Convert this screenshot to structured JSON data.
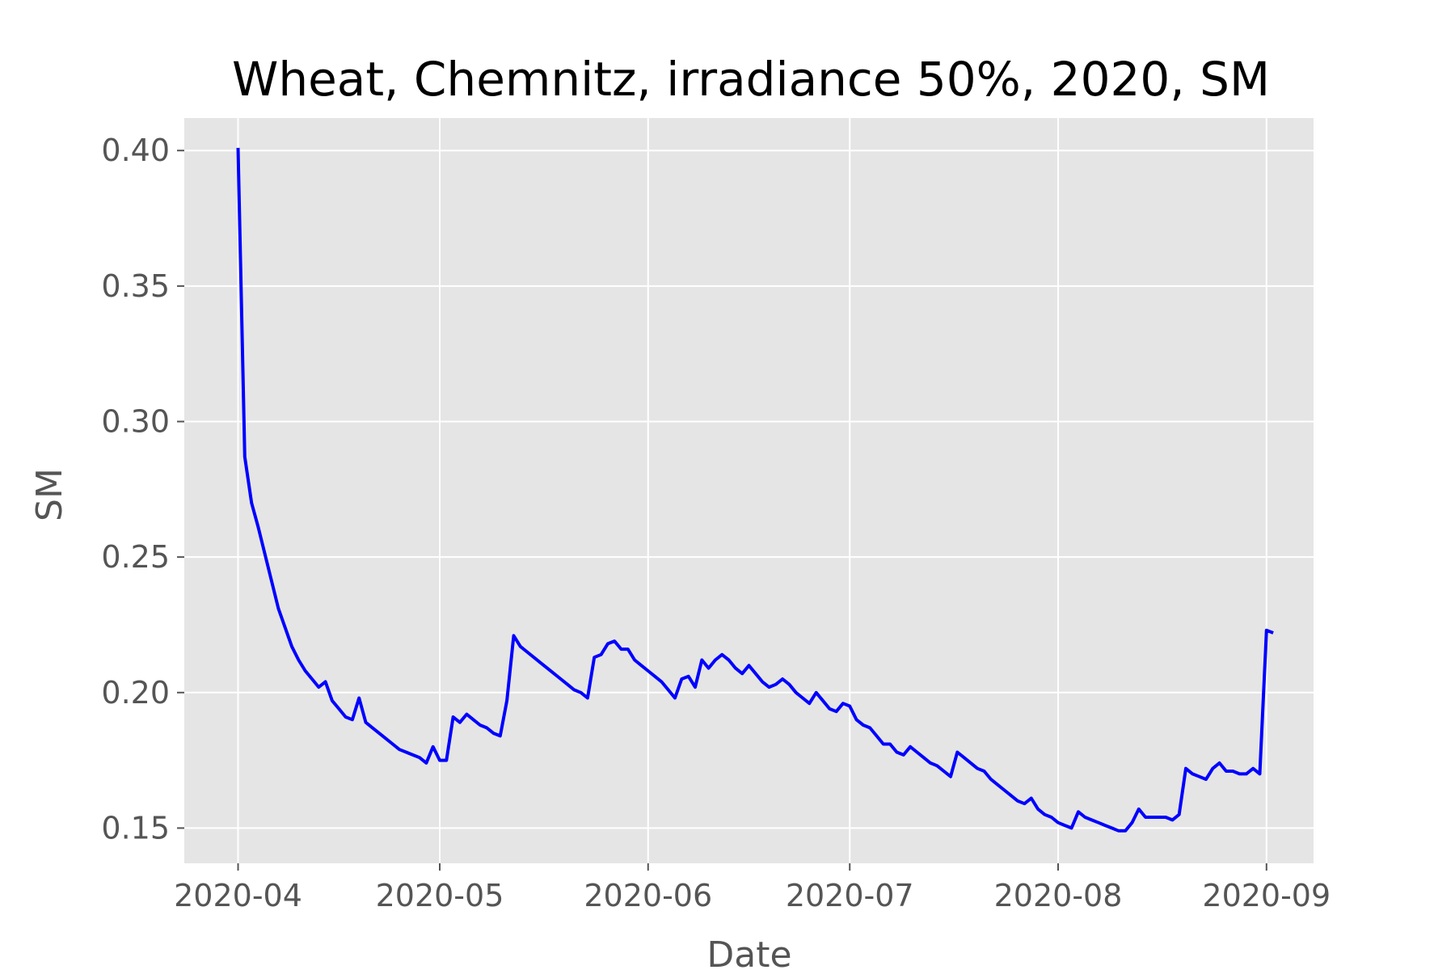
{
  "chart_data": {
    "type": "line",
    "title": "Wheat, Chemnitz, irradiance 50%, 2020, SM",
    "xlabel": "Date",
    "ylabel": "SM",
    "x_ticks": [
      "2020-04-01",
      "2020-05-01",
      "2020-06-01",
      "2020-07-01",
      "2020-08-01",
      "2020-09-01"
    ],
    "x_tick_labels": [
      "2020-04",
      "2020-05",
      "2020-06",
      "2020-07",
      "2020-08",
      "2020-09"
    ],
    "y_ticks": [
      0.15,
      0.2,
      0.25,
      0.3,
      0.35,
      0.4
    ],
    "y_tick_labels": [
      "0.15",
      "0.20",
      "0.25",
      "0.30",
      "0.35",
      "0.40"
    ],
    "xlim": [
      "2020-03-24",
      "2020-09-08"
    ],
    "ylim": [
      0.137,
      0.412
    ],
    "grid": true,
    "series": [
      {
        "color": "#0000ff",
        "points": [
          [
            "2020-04-01",
            0.401
          ],
          [
            "2020-04-02",
            0.287
          ],
          [
            "2020-04-03",
            0.27
          ],
          [
            "2020-04-04",
            0.261
          ],
          [
            "2020-04-05",
            0.251
          ],
          [
            "2020-04-06",
            0.241
          ],
          [
            "2020-04-07",
            0.231
          ],
          [
            "2020-04-08",
            0.224
          ],
          [
            "2020-04-09",
            0.217
          ],
          [
            "2020-04-10",
            0.212
          ],
          [
            "2020-04-11",
            0.208
          ],
          [
            "2020-04-12",
            0.205
          ],
          [
            "2020-04-13",
            0.202
          ],
          [
            "2020-04-14",
            0.204
          ],
          [
            "2020-04-15",
            0.197
          ],
          [
            "2020-04-16",
            0.194
          ],
          [
            "2020-04-17",
            0.191
          ],
          [
            "2020-04-18",
            0.19
          ],
          [
            "2020-04-19",
            0.198
          ],
          [
            "2020-04-20",
            0.189
          ],
          [
            "2020-04-21",
            0.187
          ],
          [
            "2020-04-22",
            0.185
          ],
          [
            "2020-04-23",
            0.183
          ],
          [
            "2020-04-24",
            0.181
          ],
          [
            "2020-04-25",
            0.179
          ],
          [
            "2020-04-26",
            0.178
          ],
          [
            "2020-04-27",
            0.177
          ],
          [
            "2020-04-28",
            0.176
          ],
          [
            "2020-04-29",
            0.174
          ],
          [
            "2020-04-30",
            0.18
          ],
          [
            "2020-05-01",
            0.175
          ],
          [
            "2020-05-02",
            0.175
          ],
          [
            "2020-05-03",
            0.191
          ],
          [
            "2020-05-04",
            0.189
          ],
          [
            "2020-05-05",
            0.192
          ],
          [
            "2020-05-06",
            0.19
          ],
          [
            "2020-05-07",
            0.188
          ],
          [
            "2020-05-08",
            0.187
          ],
          [
            "2020-05-09",
            0.185
          ],
          [
            "2020-05-10",
            0.184
          ],
          [
            "2020-05-11",
            0.197
          ],
          [
            "2020-05-12",
            0.221
          ],
          [
            "2020-05-13",
            0.217
          ],
          [
            "2020-05-14",
            0.215
          ],
          [
            "2020-05-15",
            0.213
          ],
          [
            "2020-05-16",
            0.211
          ],
          [
            "2020-05-17",
            0.209
          ],
          [
            "2020-05-18",
            0.207
          ],
          [
            "2020-05-19",
            0.205
          ],
          [
            "2020-05-20",
            0.203
          ],
          [
            "2020-05-21",
            0.201
          ],
          [
            "2020-05-22",
            0.2
          ],
          [
            "2020-05-23",
            0.198
          ],
          [
            "2020-05-24",
            0.213
          ],
          [
            "2020-05-25",
            0.214
          ],
          [
            "2020-05-26",
            0.218
          ],
          [
            "2020-05-27",
            0.219
          ],
          [
            "2020-05-28",
            0.216
          ],
          [
            "2020-05-29",
            0.216
          ],
          [
            "2020-05-30",
            0.212
          ],
          [
            "2020-05-31",
            0.21
          ],
          [
            "2020-06-01",
            0.208
          ],
          [
            "2020-06-02",
            0.206
          ],
          [
            "2020-06-03",
            0.204
          ],
          [
            "2020-06-04",
            0.201
          ],
          [
            "2020-06-05",
            0.198
          ],
          [
            "2020-06-06",
            0.205
          ],
          [
            "2020-06-07",
            0.206
          ],
          [
            "2020-06-08",
            0.202
          ],
          [
            "2020-06-09",
            0.212
          ],
          [
            "2020-06-10",
            0.209
          ],
          [
            "2020-06-11",
            0.212
          ],
          [
            "2020-06-12",
            0.214
          ],
          [
            "2020-06-13",
            0.212
          ],
          [
            "2020-06-14",
            0.209
          ],
          [
            "2020-06-15",
            0.207
          ],
          [
            "2020-06-16",
            0.21
          ],
          [
            "2020-06-17",
            0.207
          ],
          [
            "2020-06-18",
            0.204
          ],
          [
            "2020-06-19",
            0.202
          ],
          [
            "2020-06-20",
            0.203
          ],
          [
            "2020-06-21",
            0.205
          ],
          [
            "2020-06-22",
            0.203
          ],
          [
            "2020-06-23",
            0.2
          ],
          [
            "2020-06-24",
            0.198
          ],
          [
            "2020-06-25",
            0.196
          ],
          [
            "2020-06-26",
            0.2
          ],
          [
            "2020-06-27",
            0.197
          ],
          [
            "2020-06-28",
            0.194
          ],
          [
            "2020-06-29",
            0.193
          ],
          [
            "2020-06-30",
            0.196
          ],
          [
            "2020-07-01",
            0.195
          ],
          [
            "2020-07-02",
            0.19
          ],
          [
            "2020-07-03",
            0.188
          ],
          [
            "2020-07-04",
            0.187
          ],
          [
            "2020-07-05",
            0.184
          ],
          [
            "2020-07-06",
            0.181
          ],
          [
            "2020-07-07",
            0.181
          ],
          [
            "2020-07-08",
            0.178
          ],
          [
            "2020-07-09",
            0.177
          ],
          [
            "2020-07-10",
            0.18
          ],
          [
            "2020-07-11",
            0.178
          ],
          [
            "2020-07-12",
            0.176
          ],
          [
            "2020-07-13",
            0.174
          ],
          [
            "2020-07-14",
            0.173
          ],
          [
            "2020-07-15",
            0.171
          ],
          [
            "2020-07-16",
            0.169
          ],
          [
            "2020-07-17",
            0.178
          ],
          [
            "2020-07-18",
            0.176
          ],
          [
            "2020-07-19",
            0.174
          ],
          [
            "2020-07-20",
            0.172
          ],
          [
            "2020-07-21",
            0.171
          ],
          [
            "2020-07-22",
            0.168
          ],
          [
            "2020-07-23",
            0.166
          ],
          [
            "2020-07-24",
            0.164
          ],
          [
            "2020-07-25",
            0.162
          ],
          [
            "2020-07-26",
            0.16
          ],
          [
            "2020-07-27",
            0.159
          ],
          [
            "2020-07-28",
            0.161
          ],
          [
            "2020-07-29",
            0.157
          ],
          [
            "2020-07-30",
            0.155
          ],
          [
            "2020-07-31",
            0.154
          ],
          [
            "2020-08-01",
            0.152
          ],
          [
            "2020-08-02",
            0.151
          ],
          [
            "2020-08-03",
            0.15
          ],
          [
            "2020-08-04",
            0.156
          ],
          [
            "2020-08-05",
            0.154
          ],
          [
            "2020-08-06",
            0.153
          ],
          [
            "2020-08-07",
            0.152
          ],
          [
            "2020-08-08",
            0.151
          ],
          [
            "2020-08-09",
            0.15
          ],
          [
            "2020-08-10",
            0.149
          ],
          [
            "2020-08-11",
            0.149
          ],
          [
            "2020-08-12",
            0.152
          ],
          [
            "2020-08-13",
            0.157
          ],
          [
            "2020-08-14",
            0.154
          ],
          [
            "2020-08-15",
            0.154
          ],
          [
            "2020-08-16",
            0.154
          ],
          [
            "2020-08-17",
            0.154
          ],
          [
            "2020-08-18",
            0.153
          ],
          [
            "2020-08-19",
            0.155
          ],
          [
            "2020-08-20",
            0.172
          ],
          [
            "2020-08-21",
            0.17
          ],
          [
            "2020-08-22",
            0.169
          ],
          [
            "2020-08-23",
            0.168
          ],
          [
            "2020-08-24",
            0.172
          ],
          [
            "2020-08-25",
            0.174
          ],
          [
            "2020-08-26",
            0.171
          ],
          [
            "2020-08-27",
            0.171
          ],
          [
            "2020-08-28",
            0.17
          ],
          [
            "2020-08-29",
            0.17
          ],
          [
            "2020-08-30",
            0.172
          ],
          [
            "2020-08-31",
            0.17
          ],
          [
            "2020-09-01",
            0.223
          ],
          [
            "2020-09-02",
            0.222
          ]
        ]
      }
    ]
  }
}
